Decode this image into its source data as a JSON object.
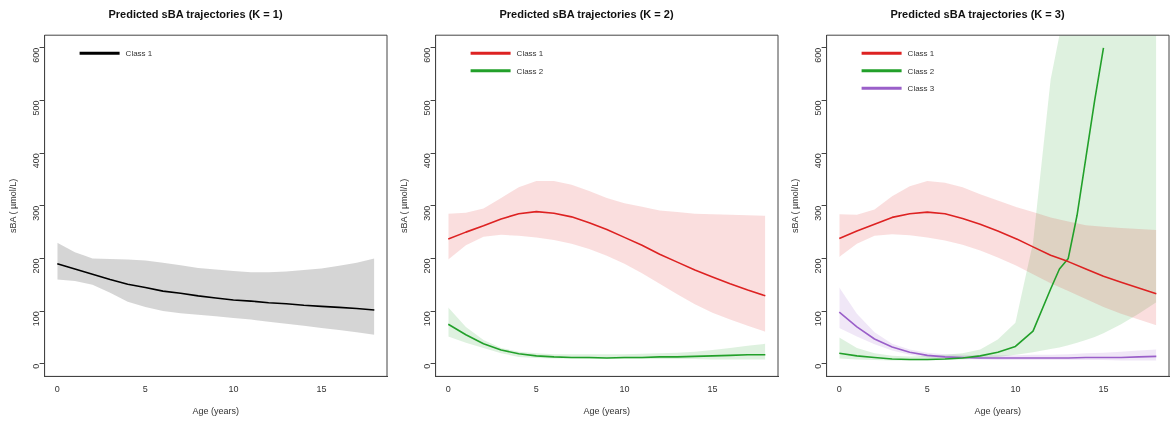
{
  "chart_data": [
    {
      "type": "line",
      "title": "Predicted sBA trajectories (K = 1)",
      "xlabel": "Age (years)",
      "ylabel": "sBA ( µmol/L)",
      "xlim": [
        -0.72,
        18.72
      ],
      "ylim": [
        -24,
        624
      ],
      "xticks": [
        0,
        5,
        10,
        15
      ],
      "yticks": [
        0,
        100,
        200,
        300,
        400,
        500,
        600
      ],
      "grid": false,
      "legend": "top left",
      "marker": "none",
      "line_style": "solid",
      "series": [
        {
          "name": "Class 1",
          "color": "#000000",
          "x": [
            0,
            1,
            2,
            3,
            4,
            5,
            6,
            7,
            8,
            9,
            10,
            11,
            12,
            13,
            14,
            15,
            16,
            17,
            18
          ],
          "values": [
            190,
            180,
            170,
            160,
            151,
            145,
            138,
            134,
            129,
            125,
            121,
            119,
            116,
            114,
            111,
            109,
            107,
            105,
            102
          ],
          "upper": [
            230,
            212,
            200,
            199,
            198,
            196,
            192,
            187,
            182,
            179,
            176,
            174,
            174,
            175,
            178,
            181,
            186,
            192,
            200
          ],
          "lower": [
            160,
            157,
            150,
            135,
            118,
            108,
            100,
            96,
            93,
            90,
            87,
            84,
            80,
            76,
            72,
            68,
            64,
            60,
            55
          ]
        }
      ]
    },
    {
      "type": "line",
      "title": "Predicted sBA trajectories (K = 2)",
      "xlabel": "Age (years)",
      "ylabel": "sBA ( µmol/L)",
      "xlim": [
        -0.72,
        18.72
      ],
      "ylim": [
        -24,
        624
      ],
      "xticks": [
        0,
        5,
        10,
        15
      ],
      "yticks": [
        0,
        100,
        200,
        300,
        400,
        500,
        600
      ],
      "grid": false,
      "legend": "top left",
      "marker": "none",
      "line_style": "solid",
      "series": [
        {
          "name": "Class 1",
          "color": "#dd2222",
          "x": [
            0,
            1,
            2,
            3,
            4,
            5,
            6,
            7,
            8,
            9,
            10,
            11,
            12,
            13,
            14,
            15,
            16,
            17,
            18
          ],
          "values": [
            237,
            250,
            262,
            275,
            285,
            289,
            286,
            279,
            268,
            255,
            240,
            225,
            208,
            193,
            178,
            165,
            152,
            140,
            129
          ],
          "upper": [
            285,
            287,
            295,
            315,
            335,
            347,
            347,
            340,
            328,
            315,
            305,
            298,
            291,
            288,
            285,
            284,
            283,
            282,
            281
          ],
          "lower": [
            198,
            225,
            241,
            245,
            243,
            240,
            235,
            228,
            218,
            205,
            190,
            172,
            152,
            132,
            113,
            97,
            84,
            72,
            61
          ]
        },
        {
          "name": "Class 2",
          "color": "#22a02a",
          "x": [
            0,
            1,
            2,
            3,
            4,
            5,
            6,
            7,
            8,
            9,
            10,
            11,
            12,
            13,
            14,
            15,
            16,
            17,
            18
          ],
          "values": [
            75,
            55,
            38,
            26,
            19,
            15,
            13,
            12,
            12,
            11,
            12,
            12,
            13,
            13,
            14,
            15,
            16,
            17,
            17
          ],
          "upper": [
            107,
            70,
            45,
            30,
            23,
            20,
            18,
            18,
            18,
            18,
            18,
            19,
            20,
            21,
            23,
            26,
            30,
            34,
            38
          ],
          "lower": [
            52,
            40,
            30,
            20,
            13,
            11,
            10,
            10,
            9,
            9,
            9,
            9,
            9,
            9,
            9,
            8,
            8,
            8,
            8
          ]
        }
      ]
    },
    {
      "type": "line",
      "title": "Predicted sBA trajectories (K = 3)",
      "xlabel": "Age (years)",
      "ylabel": "sBA ( µmol/L)",
      "xlim": [
        -0.72,
        18.72
      ],
      "ylim": [
        -24,
        624
      ],
      "xticks": [
        0,
        5,
        10,
        15
      ],
      "yticks": [
        0,
        100,
        200,
        300,
        400,
        500,
        600
      ],
      "grid": false,
      "legend": "top left",
      "marker": "none",
      "line_style": "solid",
      "series": [
        {
          "name": "Class 1",
          "color": "#dd2222",
          "x": [
            0,
            1,
            2,
            3,
            4,
            5,
            6,
            7,
            8,
            9,
            10,
            11,
            12,
            13,
            14,
            15,
            16,
            17,
            18
          ],
          "values": [
            238,
            252,
            265,
            278,
            285,
            288,
            285,
            276,
            265,
            252,
            238,
            222,
            206,
            194,
            180,
            166,
            155,
            144,
            133
          ],
          "upper": [
            284,
            283,
            293,
            318,
            337,
            347,
            344,
            335,
            322,
            310,
            298,
            288,
            278,
            270,
            263,
            260,
            258,
            256,
            254
          ],
          "lower": [
            203,
            228,
            243,
            246,
            244,
            240,
            234,
            226,
            215,
            202,
            187,
            170,
            153,
            138,
            123,
            108,
            95,
            84,
            73
          ]
        },
        {
          "name": "Class 2",
          "color": "#22a02a",
          "x": [
            0,
            1,
            2,
            3,
            4,
            5,
            6,
            7,
            8,
            9,
            10,
            11,
            12,
            12.5,
            13,
            13.5,
            14,
            14.5,
            15,
            16,
            17,
            18
          ],
          "values": [
            20,
            15,
            12,
            9,
            8,
            8,
            9,
            11,
            15,
            22,
            33,
            62,
            142,
            180,
            200,
            282,
            391,
            500,
            600,
            null,
            null,
            null
          ],
          "upper": [
            50,
            30,
            20,
            15,
            14,
            15,
            17,
            20,
            27,
            46,
            78,
            230,
            540,
            624,
            624,
            624,
            624,
            624,
            624,
            624,
            624,
            624
          ],
          "lower": [
            10,
            8,
            7,
            6,
            6,
            6,
            7,
            8,
            10,
            13,
            17,
            22,
            28,
            31,
            35,
            40,
            45,
            51,
            58,
            75,
            95,
            117
          ]
        },
        {
          "name": "Class 3",
          "color": "#9a5fc9",
          "x": [
            0,
            1,
            2,
            3,
            4,
            5,
            6,
            7,
            8,
            9,
            10,
            11,
            12,
            13,
            14,
            15,
            16,
            17,
            18
          ],
          "values": [
            98,
            70,
            47,
            32,
            22,
            16,
            13,
            12,
            11,
            11,
            11,
            11,
            11,
            11,
            12,
            12,
            12,
            13,
            14
          ],
          "upper": [
            145,
            95,
            60,
            38,
            27,
            21,
            18,
            17,
            16,
            16,
            16,
            17,
            17,
            18,
            20,
            21,
            23,
            25,
            27
          ],
          "lower": [
            68,
            52,
            37,
            25,
            17,
            12,
            10,
            9,
            8,
            7,
            7,
            7,
            7,
            7,
            7,
            7,
            6,
            6,
            6
          ]
        }
      ]
    }
  ]
}
